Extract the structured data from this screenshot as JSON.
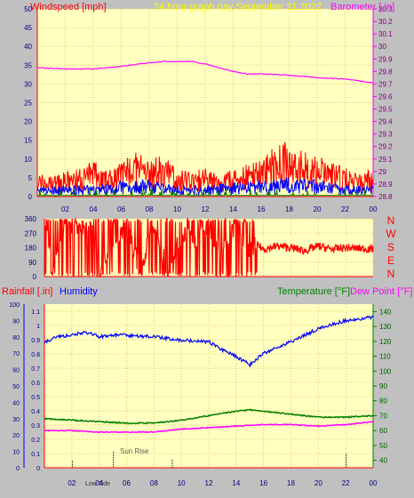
{
  "header": {
    "left_label": "Windspeed [mph]",
    "center_label": "24 hour graph day   September 21 2022",
    "right_label": "Barometer [.in]"
  },
  "colors": {
    "plot_bg": "#ffffc0",
    "grid": "#e8c860",
    "wind_max": "#ff0000",
    "wind_avg": "#0000ff",
    "wind_green": "#008000",
    "barometer": "#ff00ff",
    "wind_dir": "#ff0000",
    "humidity": "#0000ff",
    "temperature": "#008000",
    "dewpoint": "#ff00ff",
    "rain": "#ff0000"
  },
  "chart_data": [
    {
      "type": "line",
      "name": "wind-baro",
      "x_ticks": [
        "02",
        "04",
        "06",
        "08",
        "10",
        "12",
        "14",
        "16",
        "18",
        "20",
        "22",
        "00"
      ],
      "left_axis": {
        "label": "Windspeed [mph]",
        "range": [
          0,
          50
        ],
        "ticks": [
          "0",
          "5",
          "10",
          "15",
          "20",
          "25",
          "30",
          "35",
          "40",
          "45",
          "50"
        ]
      },
      "right_axis": {
        "label": "Barometer [.in]",
        "range": [
          28.8,
          30.3
        ],
        "ticks": [
          "28.8",
          "28.9",
          "29",
          "29.1",
          "29.2",
          "29.3",
          "29.4",
          "29.5",
          "29.6",
          "29.7",
          "29.8",
          "29.9",
          "30",
          "30.1",
          "30.2",
          "30.3"
        ]
      },
      "barometer": {
        "x": [
          0,
          2,
          4,
          6,
          8,
          9,
          10,
          11,
          12,
          14,
          15,
          16,
          18,
          20,
          22,
          24
        ],
        "y": [
          29.83,
          29.82,
          29.82,
          29.84,
          29.87,
          29.88,
          29.88,
          29.88,
          29.86,
          29.8,
          29.78,
          29.78,
          29.77,
          29.75,
          29.74,
          29.71
        ]
      },
      "wind_gust": {
        "x": [
          0,
          1,
          2,
          3,
          4,
          5,
          6,
          7,
          8,
          9,
          10,
          11,
          12,
          13,
          14,
          15,
          16,
          17,
          18,
          19,
          20,
          21,
          22,
          23,
          24
        ],
        "y": [
          6,
          5,
          6,
          7,
          9,
          6,
          9,
          11,
          9,
          10,
          7,
          6,
          7,
          5,
          7,
          8,
          10,
          12,
          14,
          11,
          10,
          9,
          7,
          6,
          7
        ]
      },
      "wind_avg": {
        "x": [
          0,
          2,
          4,
          6,
          8,
          10,
          12,
          14,
          16,
          18,
          20,
          22,
          24
        ],
        "y": [
          1.5,
          2,
          2,
          3,
          3,
          2,
          2,
          2.5,
          3,
          3.5,
          3,
          2,
          2
        ]
      }
    },
    {
      "type": "line",
      "name": "wind-direction",
      "x_ticks": [
        "02",
        "04",
        "06",
        "08",
        "10",
        "12",
        "14",
        "16",
        "18",
        "20",
        "22",
        "00"
      ],
      "left_axis": {
        "range": [
          0,
          360
        ],
        "ticks": [
          "0",
          "90",
          "180",
          "270",
          "360"
        ]
      },
      "right_labels": [
        "N",
        "W",
        "S",
        "E",
        "N"
      ],
      "direction": {
        "x": [
          0.2,
          0.5,
          1.5,
          2.5,
          3.5,
          4,
          5,
          6,
          7,
          8,
          9,
          10,
          11,
          12,
          13,
          14,
          15,
          15.5,
          16,
          17,
          18,
          19,
          20,
          21,
          22,
          23,
          24
        ],
        "y": [
          350,
          20,
          320,
          300,
          290,
          20,
          200,
          330,
          30,
          340,
          20,
          260,
          220,
          300,
          160,
          330,
          160,
          200,
          170,
          190,
          180,
          160,
          190,
          170,
          180,
          175,
          170
        ]
      }
    },
    {
      "type": "line",
      "name": "temp-humidity-rain",
      "x_ticks": [
        "02",
        "04",
        "06",
        "08",
        "10",
        "12",
        "14",
        "16",
        "18",
        "20",
        "22",
        "00"
      ],
      "legend": {
        "rain": "Rainfall [.in]",
        "humidity": "Humidity",
        "temperature": "Temperature [°F]",
        "dewpoint": "Dew Point [°F]"
      },
      "humidity_axis": {
        "range": [
          0,
          100
        ],
        "ticks": [
          "0",
          "10",
          "20",
          "30",
          "40",
          "50",
          "60",
          "70",
          "80",
          "90",
          "100"
        ]
      },
      "rain_axis": {
        "range": [
          0,
          1.15
        ],
        "ticks": [
          "0",
          "0.1",
          "0.2",
          "0.3",
          "0.4",
          "0.5",
          "0.6",
          "0.7",
          "0.8",
          "0.9",
          "1",
          "1.1"
        ]
      },
      "temp_axis": {
        "range": [
          35,
          145
        ],
        "ticks": [
          "40",
          "50",
          "60",
          "70",
          "80",
          "90",
          "100",
          "110",
          "120",
          "130",
          "140"
        ]
      },
      "humidity": {
        "x": [
          0,
          1,
          2,
          3,
          4,
          5,
          6,
          8,
          10,
          12,
          13,
          14,
          15,
          16,
          18,
          20,
          22,
          24
        ],
        "y": [
          77,
          80,
          81,
          83,
          80,
          81,
          81,
          80,
          78,
          77,
          72,
          68,
          63,
          70,
          77,
          85,
          90,
          92
        ]
      },
      "temperature": {
        "x": [
          0,
          2,
          4,
          6,
          8,
          10,
          12,
          14,
          15,
          16,
          18,
          20,
          22,
          24
        ],
        "y": [
          68,
          67,
          66,
          65,
          65,
          67,
          70,
          73,
          74,
          73,
          71,
          69,
          69,
          70
        ]
      },
      "dewpoint": {
        "x": [
          0,
          2,
          4,
          6,
          8,
          10,
          12,
          14,
          16,
          18,
          20,
          22,
          24
        ],
        "y": [
          60,
          60,
          59,
          59,
          59,
          61,
          62,
          63,
          64,
          64,
          63,
          64,
          66
        ]
      },
      "annotations": [
        "Sun Rise",
        "Low Tide"
      ]
    }
  ]
}
